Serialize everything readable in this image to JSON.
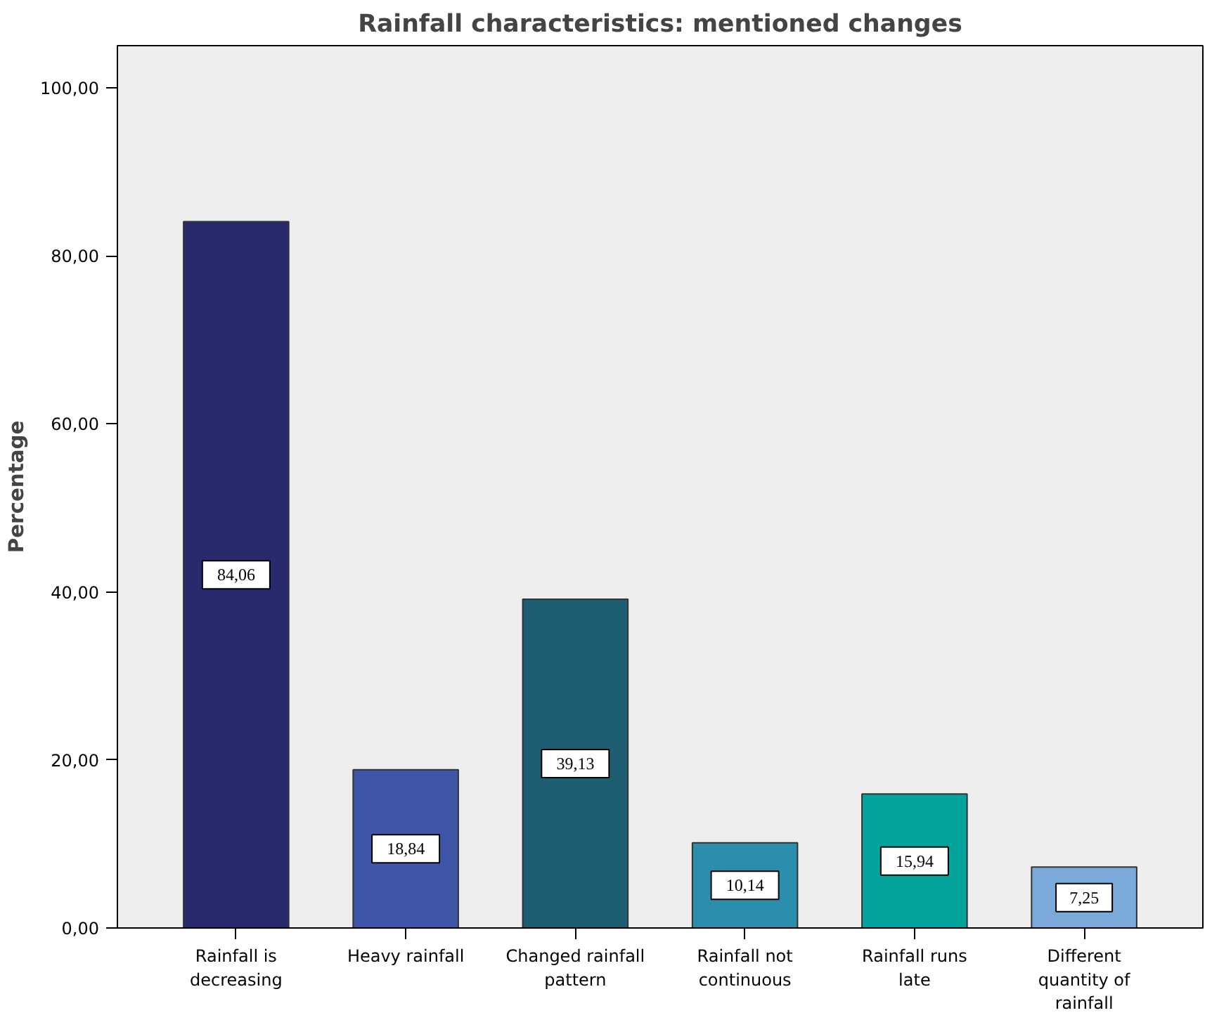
{
  "chart_data": {
    "type": "bar",
    "title": "Rainfall characteristics: mentioned changes",
    "ylabel": "Percentage",
    "categories": [
      "Rainfall is decreasing",
      "Heavy rainfall",
      "Changed rainfall pattern",
      "Rainfall not continuous",
      "Rainfall runs late",
      "Different quantity of rainfall"
    ],
    "values": [
      84.06,
      18.84,
      39.13,
      10.14,
      15.94,
      7.25
    ],
    "value_labels": [
      "84,06",
      "18,84",
      "39,13",
      "10,14",
      "15,94",
      "7,25"
    ],
    "colors": [
      "#29296e",
      "#3f56a8",
      "#1f5e72",
      "#2a8eac",
      "#05a39e",
      "#7ba9d9"
    ],
    "ylim": [
      0,
      105
    ],
    "yticks": [
      {
        "value": 0,
        "label": "0,00"
      },
      {
        "value": 20,
        "label": "20,00"
      },
      {
        "value": 40,
        "label": "40,00"
      },
      {
        "value": 60,
        "label": "60,00"
      },
      {
        "value": 80,
        "label": "80,00"
      },
      {
        "value": 100,
        "label": "100,00"
      }
    ],
    "grid": false
  }
}
